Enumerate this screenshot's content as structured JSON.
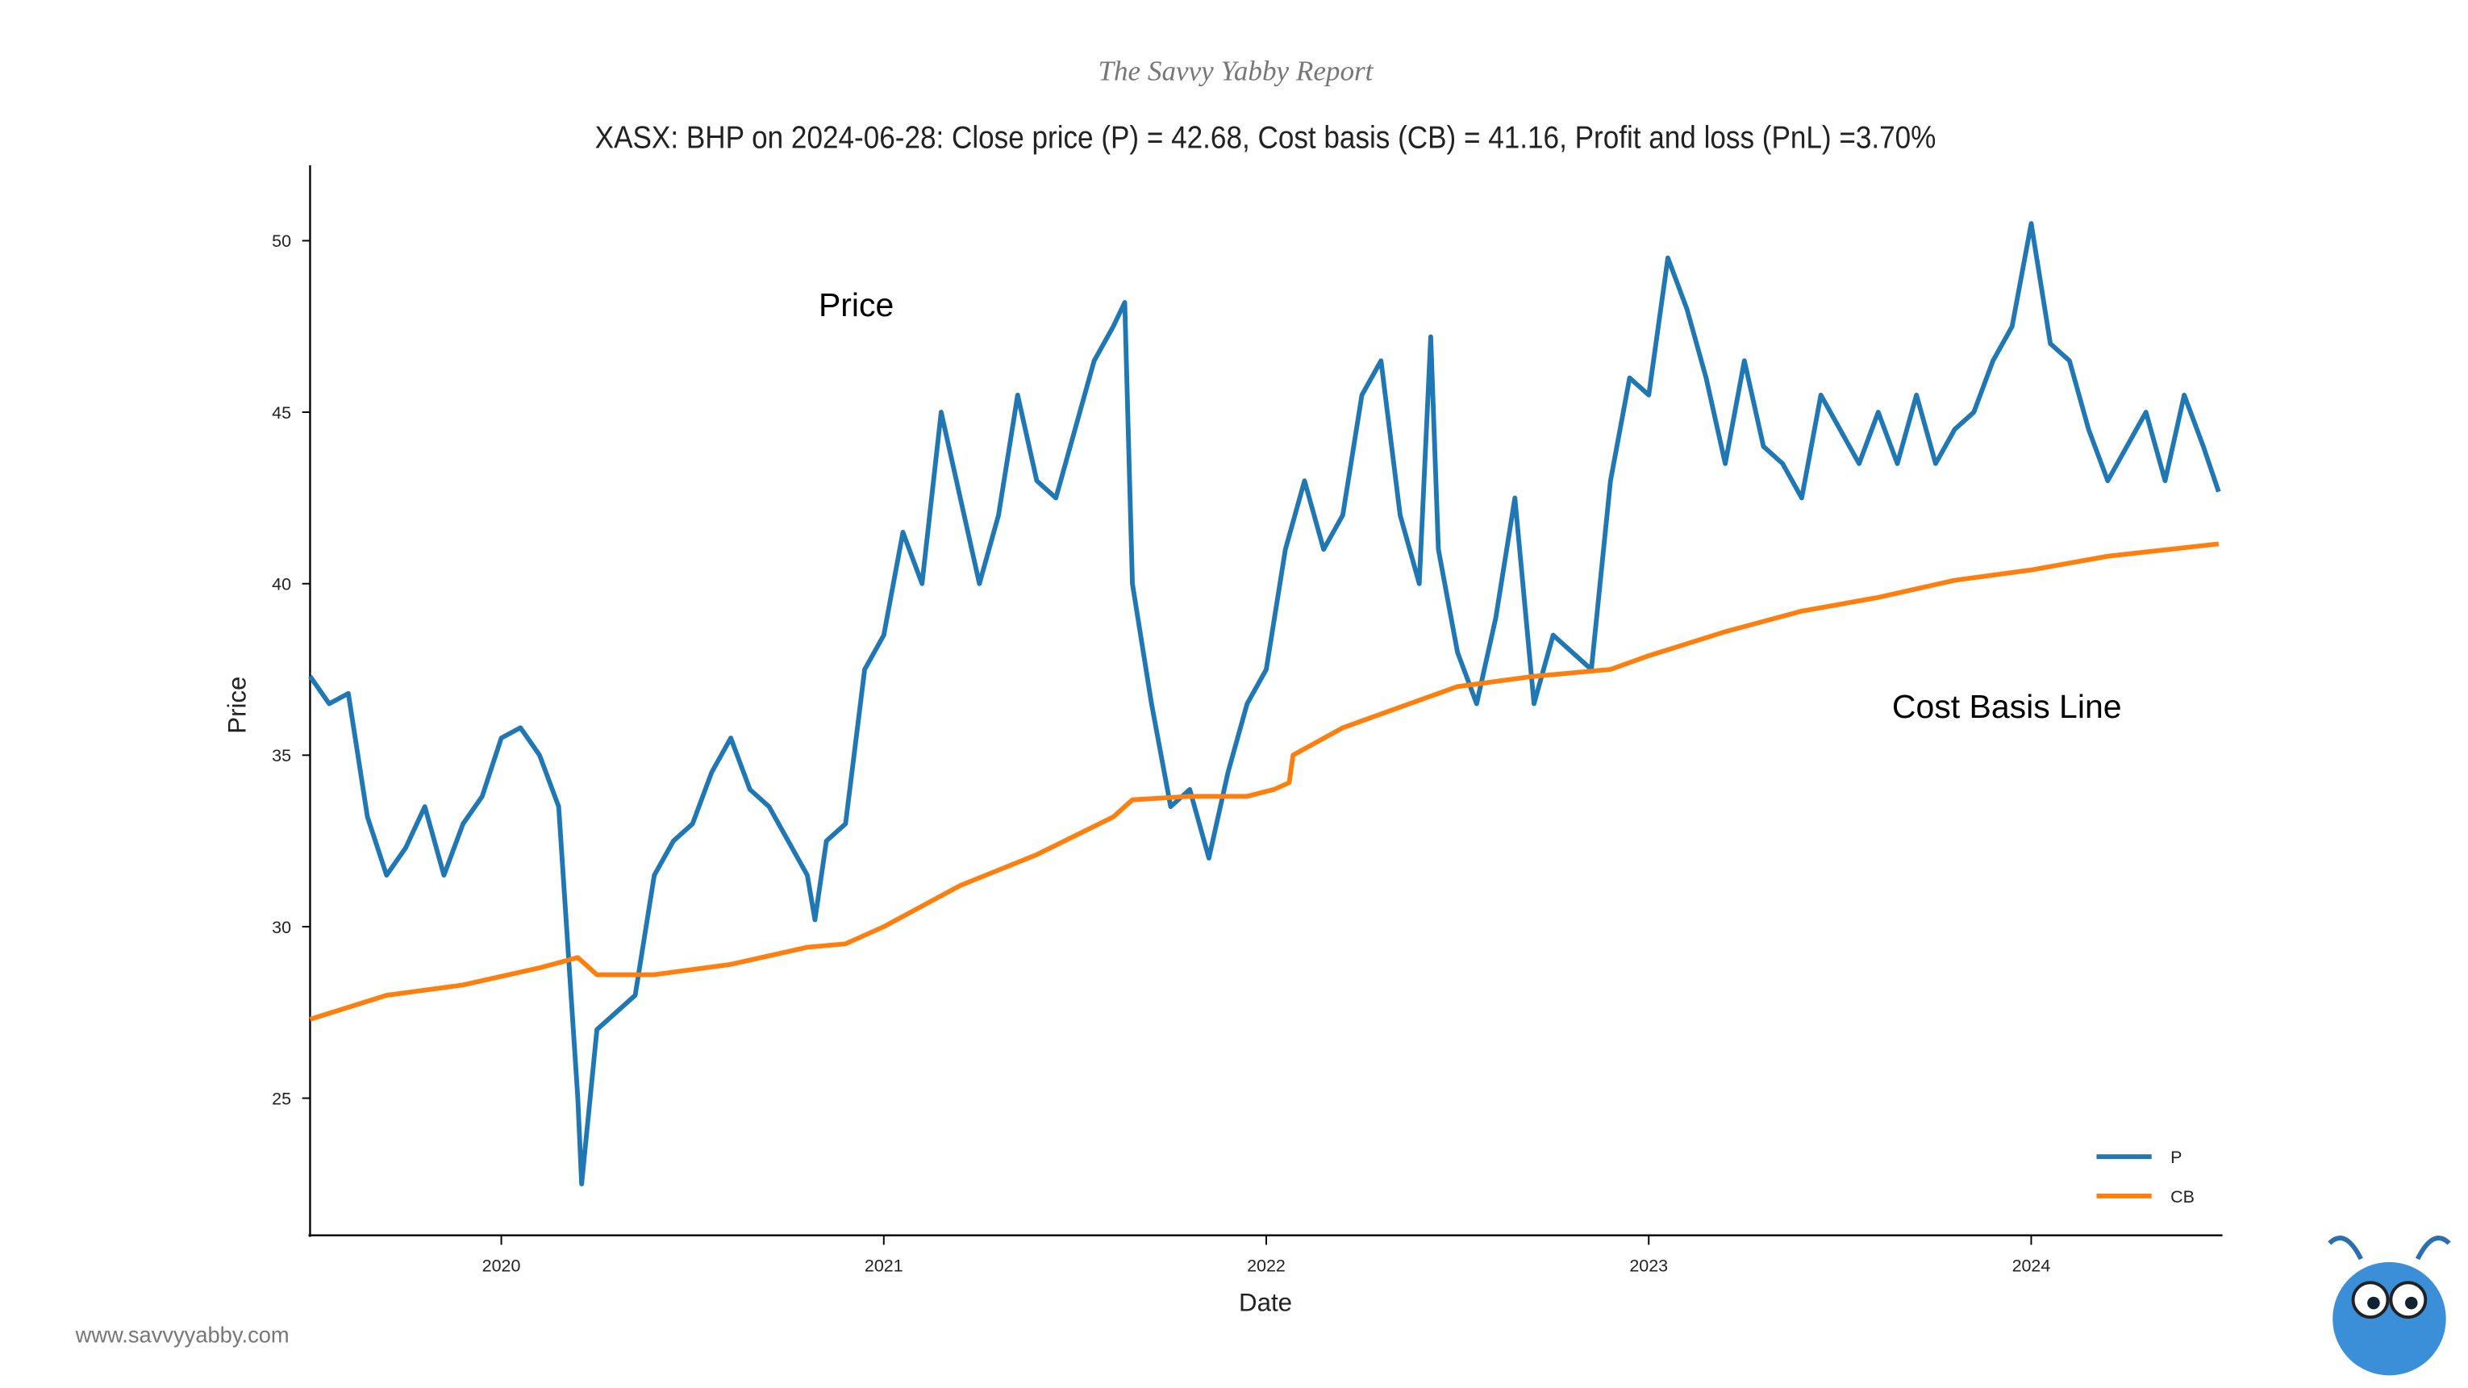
{
  "chart_data": {
    "type": "line",
    "header": "The Savvy Yabby Report",
    "title": "XASX: BHP on 2024-06-28: Close price (P) = 42.68, Cost basis (CB) = 41.16, Profit and loss (PnL) =3.70%",
    "xlabel": "Date",
    "ylabel": "Price",
    "annotations": [
      "Price",
      "Cost Basis Line"
    ],
    "footer": "www.savvyyabby.com",
    "xlim": [
      2019.5,
      2024.5
    ],
    "xticks": [
      2020,
      2021,
      2022,
      2023,
      2024
    ],
    "ylim": [
      21,
      52.2
    ],
    "yticks": [
      25,
      30,
      35,
      40,
      45,
      50
    ],
    "grid": false,
    "legend": "lower right",
    "series": [
      {
        "name": "P",
        "color": "#1f77b4",
        "x": [
          2019.5,
          2019.55,
          2019.6,
          2019.65,
          2019.7,
          2019.75,
          2019.8,
          2019.85,
          2019.9,
          2019.95,
          2020.0,
          2020.05,
          2020.1,
          2020.15,
          2020.2,
          2020.21,
          2020.25,
          2020.3,
          2020.35,
          2020.4,
          2020.45,
          2020.5,
          2020.55,
          2020.6,
          2020.65,
          2020.7,
          2020.75,
          2020.8,
          2020.82,
          2020.85,
          2020.9,
          2020.95,
          2021.0,
          2021.05,
          2021.1,
          2021.15,
          2021.2,
          2021.25,
          2021.3,
          2021.35,
          2021.4,
          2021.45,
          2021.5,
          2021.55,
          2021.6,
          2021.63,
          2021.65,
          2021.7,
          2021.75,
          2021.8,
          2021.85,
          2021.9,
          2021.95,
          2022.0,
          2022.05,
          2022.1,
          2022.15,
          2022.2,
          2022.25,
          2022.3,
          2022.35,
          2022.4,
          2022.43,
          2022.45,
          2022.5,
          2022.55,
          2022.6,
          2022.65,
          2022.7,
          2022.75,
          2022.8,
          2022.85,
          2022.9,
          2022.95,
          2023.0,
          2023.05,
          2023.1,
          2023.15,
          2023.2,
          2023.25,
          2023.3,
          2023.35,
          2023.4,
          2023.45,
          2023.5,
          2023.55,
          2023.6,
          2023.65,
          2023.7,
          2023.75,
          2023.8,
          2023.85,
          2023.9,
          2023.95,
          2024.0,
          2024.05,
          2024.1,
          2024.15,
          2024.2,
          2024.25,
          2024.3,
          2024.35,
          2024.4,
          2024.45,
          2024.49
        ],
        "values": [
          37.3,
          36.5,
          36.8,
          33.2,
          31.5,
          32.3,
          33.5,
          31.5,
          33,
          33.8,
          35.5,
          35.8,
          35,
          33.5,
          25,
          22.5,
          27,
          27.5,
          28,
          31.5,
          32.5,
          33,
          34.5,
          35.5,
          34,
          33.5,
          32.5,
          31.5,
          30.2,
          32.5,
          33,
          37.5,
          38.5,
          41.5,
          40,
          45,
          42.5,
          40,
          42,
          45.5,
          43,
          42.5,
          44.5,
          46.5,
          47.5,
          48.2,
          40,
          36.5,
          33.5,
          34,
          32,
          34.5,
          36.5,
          37.5,
          41,
          43,
          41,
          42,
          45.5,
          46.5,
          42,
          40,
          47.2,
          41,
          38,
          36.5,
          39,
          42.5,
          36.5,
          38.5,
          38,
          37.5,
          43,
          46,
          45.5,
          49.5,
          48,
          46,
          43.5,
          46.5,
          44,
          43.5,
          42.5,
          45.5,
          44.5,
          43.5,
          45,
          43.5,
          45.5,
          43.5,
          44.5,
          45,
          46.5,
          47.5,
          50.5,
          47,
          46.5,
          44.5,
          43,
          44,
          45,
          43,
          45.5,
          44,
          42.68
        ]
      },
      {
        "name": "CB",
        "color": "#ff7f0e",
        "x": [
          2019.5,
          2019.7,
          2019.9,
          2020.1,
          2020.2,
          2020.25,
          2020.4,
          2020.6,
          2020.8,
          2020.9,
          2021.0,
          2021.2,
          2021.4,
          2021.6,
          2021.65,
          2021.8,
          2021.95,
          2022.02,
          2022.06,
          2022.07,
          2022.2,
          2022.4,
          2022.5,
          2022.7,
          2022.9,
          2023.0,
          2023.2,
          2023.4,
          2023.6,
          2023.8,
          2024.0,
          2024.2,
          2024.49
        ],
        "values": [
          27.3,
          28.0,
          28.3,
          28.8,
          29.1,
          28.6,
          28.6,
          28.9,
          29.4,
          29.5,
          30.0,
          31.2,
          32.1,
          33.2,
          33.7,
          33.8,
          33.8,
          34.0,
          34.2,
          35.0,
          35.8,
          36.6,
          37.0,
          37.3,
          37.5,
          37.9,
          38.6,
          39.2,
          39.6,
          40.1,
          40.4,
          40.8,
          41.16
        ]
      }
    ]
  }
}
